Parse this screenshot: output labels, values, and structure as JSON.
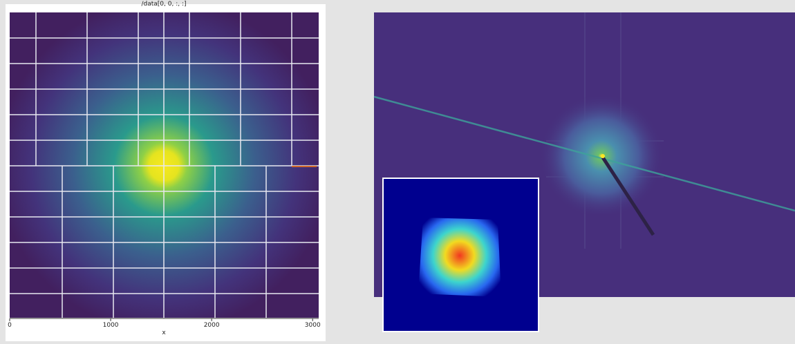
{
  "left_plot": {
    "title": "/data[0, 0, :, :]",
    "xlabel": "x",
    "xticks": [
      0,
      1000,
      2000,
      3000
    ],
    "xlim": [
      0,
      3060
    ]
  }
}
